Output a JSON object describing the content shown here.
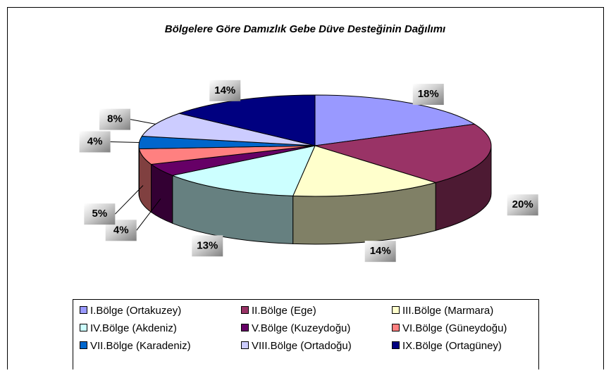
{
  "chart_data": {
    "type": "pie3d",
    "title": "Bölgelere Göre Damızlık Gebe Düve Desteğinin Dağılımı",
    "categories": [
      "I.Bölge (Ortakuzey)",
      "II.Bölge (Ege)",
      "III.Bölge (Marmara)",
      "IV.Bölge (Akdeniz)",
      "V.Bölge (Kuzeydoğu)",
      "VI.Bölge (Güneydoğu)",
      "VII.Bölge (Karadeniz)",
      "VIII.Bölge (Ortadoğu)",
      "IX.Bölge (Ortagüney)"
    ],
    "values": [
      18,
      20,
      14,
      13,
      4,
      5,
      4,
      8,
      14
    ],
    "value_labels": [
      "18%",
      "20%",
      "14%",
      "13%",
      "4%",
      "5%",
      "4%",
      "8%",
      "14%"
    ],
    "colors": [
      "#9999ff",
      "#993366",
      "#ffffcc",
      "#ccffff",
      "#660066",
      "#ff8080",
      "#0066cc",
      "#ccccff",
      "#000080"
    ],
    "legend": "bottom"
  }
}
